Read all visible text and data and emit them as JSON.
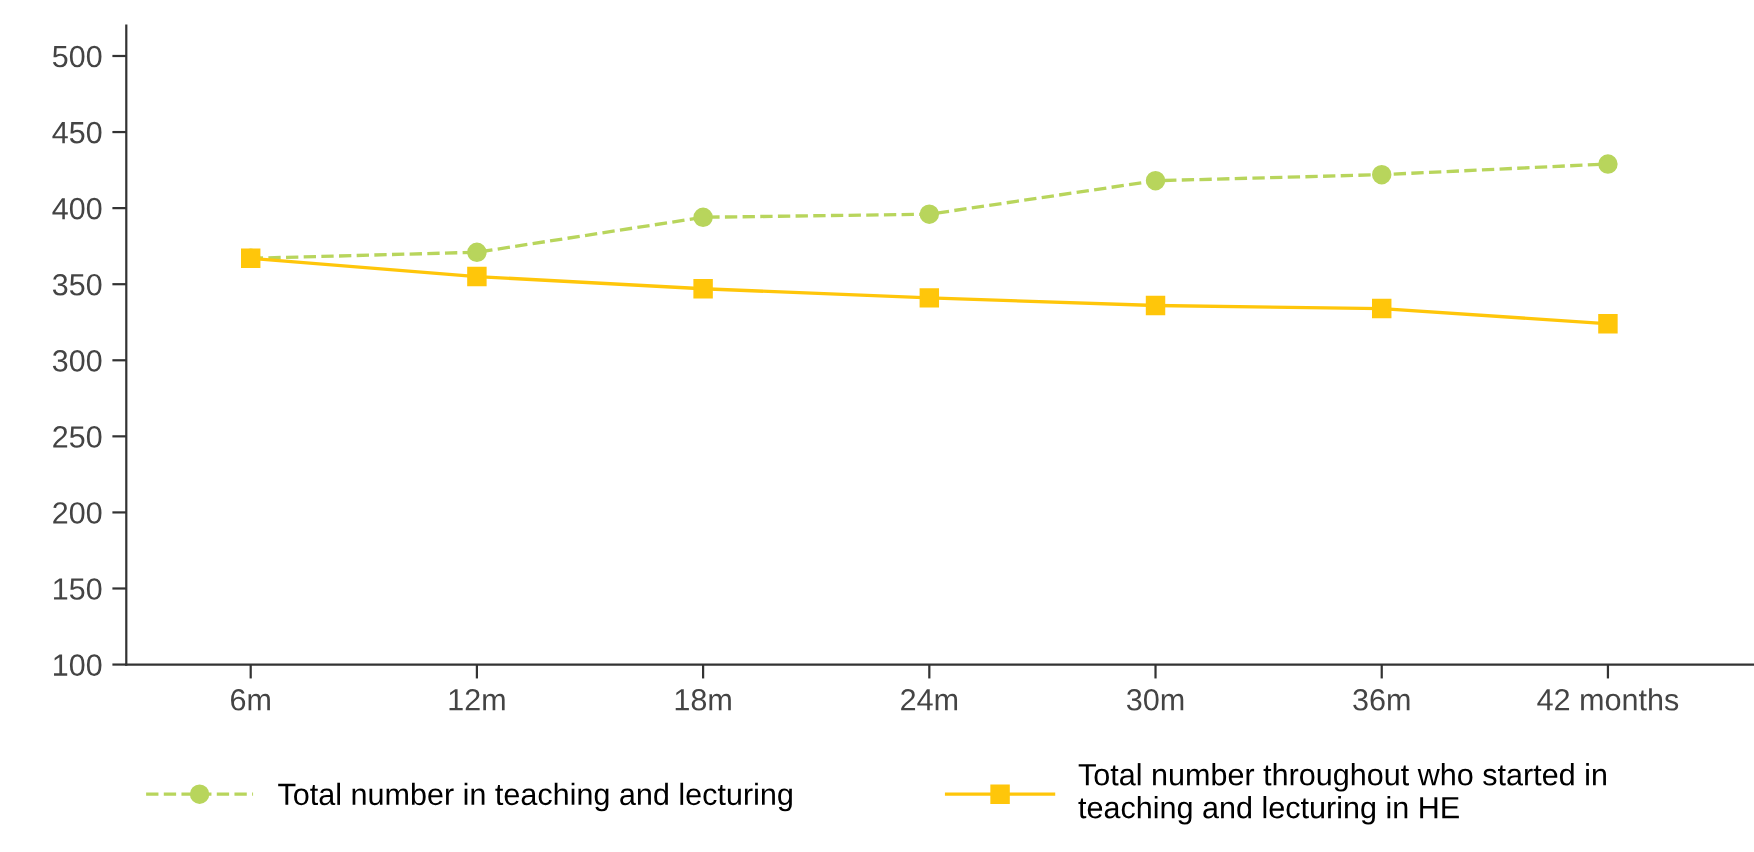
{
  "chart_data": {
    "type": "line",
    "categories": [
      "6m",
      "12m",
      "18m",
      "24m",
      "30m",
      "36m",
      "42 months"
    ],
    "series": [
      {
        "name": "Total number in teaching and lecturing",
        "color": "#b8d55c",
        "marker": "circle",
        "line_style": "dashed",
        "values": [
          367,
          371,
          394,
          396,
          418,
          422,
          429
        ]
      },
      {
        "name": "Total number throughout who started in teaching and lecturing in HE",
        "color": "#ffc60a",
        "marker": "square",
        "line_style": "solid",
        "values": [
          367,
          355,
          347,
          341,
          336,
          334,
          324
        ]
      }
    ],
    "ylim": [
      100,
      520
    ],
    "yticks": [
      100,
      150,
      200,
      250,
      300,
      350,
      400,
      450,
      500
    ],
    "grid": false,
    "legend": "bottom"
  }
}
